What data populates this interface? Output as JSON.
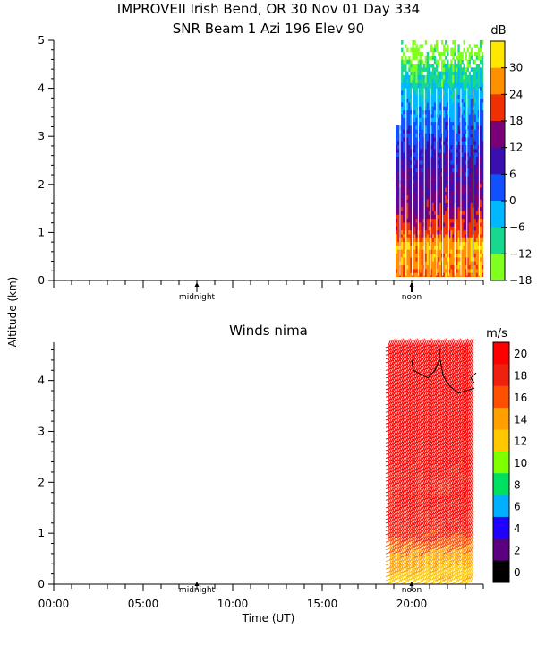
{
  "chart_data": [
    {
      "type": "heatmap",
      "title": "IMPROVEII  Irish Bend, OR  30 Nov 01 Day 334",
      "subtitle": "SNR Beam 1 Azi 196 Elev 90",
      "ylabel": "Altitude (km)",
      "xlim_hours": [
        0,
        24
      ],
      "ylim": [
        0,
        5
      ],
      "yticks": [
        "0",
        "1",
        "2",
        "3",
        "4",
        "5"
      ],
      "annotations": [
        "midnight",
        "noon"
      ],
      "midnight_hour": 8,
      "noon_hour": 20,
      "data_start_hour": 19.1,
      "data_end_hour": 24,
      "colorbar": {
        "unit": "dB",
        "levels": [
          "30",
          "24",
          "18",
          "12",
          "6",
          "0",
          "−6",
          "−12",
          "−18"
        ],
        "colors": [
          "#ffe800",
          "#ff9000",
          "#f03000",
          "#7a0078",
          "#3a0fb0",
          "#1050ff",
          "#00b8ff",
          "#18d890",
          "#80ff20"
        ]
      },
      "profile": [
        {
          "alt_km": 0.1,
          "snr_db": 26
        },
        {
          "alt_km": 0.4,
          "snr_db": 27
        },
        {
          "alt_km": 0.7,
          "snr_db": 30
        },
        {
          "alt_km": 0.9,
          "snr_db": 22
        },
        {
          "alt_km": 1.2,
          "snr_db": 19
        },
        {
          "alt_km": 1.6,
          "snr_db": 14
        },
        {
          "alt_km": 2.2,
          "snr_db": 11
        },
        {
          "alt_km": 2.8,
          "snr_db": 6
        },
        {
          "alt_km": 3.4,
          "snr_db": 1
        },
        {
          "alt_km": 3.9,
          "snr_db": -4
        },
        {
          "alt_km": 4.3,
          "snr_db": -9
        },
        {
          "alt_km": 4.7,
          "snr_db": -14
        },
        {
          "alt_km": 5.0,
          "snr_db": -17
        }
      ]
    },
    {
      "type": "scatter",
      "title": "Winds nima",
      "ylabel": "Altitude (km)",
      "xlabel": "Time (UT)",
      "xticks": [
        "00:00",
        "05:00",
        "10:00",
        "15:00",
        "20:00"
      ],
      "xtick_hours": [
        0,
        5,
        10,
        15,
        20
      ],
      "xlim_hours": [
        0,
        24
      ],
      "ylim": [
        0,
        4.75
      ],
      "yticks": [
        "0",
        "1",
        "2",
        "3",
        "4"
      ],
      "annotations": [
        "midnight",
        "noon"
      ],
      "colorbar": {
        "unit": "m/s",
        "levels": [
          "20",
          "18",
          "16",
          "14",
          "12",
          "10",
          "8",
          "6",
          "4",
          "2",
          "0"
        ],
        "colors": [
          "#ff0000",
          "#f02010",
          "#ff5000",
          "#ffa000",
          "#ffc800",
          "#80ff00",
          "#00e060",
          "#00b0ff",
          "#2000ff",
          "#5a0080",
          "#000000"
        ]
      },
      "barb_columns_hours": [
        19.0,
        19.4,
        19.8,
        20.2,
        20.6,
        21.0,
        21.4,
        21.8,
        22.2,
        22.6,
        23.0,
        23.3
      ],
      "speed_profile": [
        {
          "alt_km": 0.0,
          "speed_ms": 13
        },
        {
          "alt_km": 0.4,
          "speed_ms": 14
        },
        {
          "alt_km": 0.8,
          "speed_ms": 17
        },
        {
          "alt_km": 1.2,
          "speed_ms": 20
        },
        {
          "alt_km": 4.75,
          "speed_ms": 22
        }
      ]
    }
  ]
}
